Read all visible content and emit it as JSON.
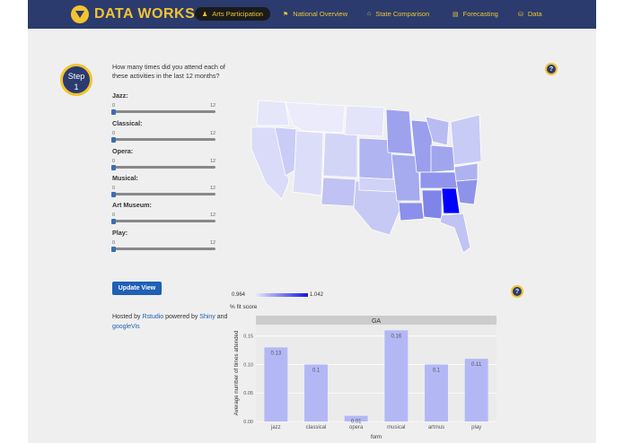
{
  "app": {
    "brand": "DATA WORKS",
    "nav": [
      {
        "label": "Arts Participation",
        "icon": "person-icon",
        "active": true
      },
      {
        "label": "National Overview",
        "icon": "flag-icon",
        "active": false
      },
      {
        "label": "State Comparison",
        "icon": "home-icon",
        "active": false
      },
      {
        "label": "Forecasting",
        "icon": "chart-icon",
        "active": false
      },
      {
        "label": "Data",
        "icon": "database-icon",
        "active": false
      }
    ]
  },
  "sidebar": {
    "step_label": "Step",
    "step_number": "1",
    "question": "How many times did you attend each of these activities in the last 12 months?",
    "sliders": [
      {
        "label": "Jazz:",
        "min": "0",
        "max": "12",
        "value": 0
      },
      {
        "label": "Classical:",
        "min": "0",
        "max": "12",
        "value": 0
      },
      {
        "label": "Opera:",
        "min": "0",
        "max": "12",
        "value": 0
      },
      {
        "label": "Musical:",
        "min": "0",
        "max": "12",
        "value": 0
      },
      {
        "label": "Art Museum:",
        "min": "0",
        "max": "12",
        "value": 0
      },
      {
        "label": "Play:",
        "min": "0",
        "max": "12",
        "value": 0
      }
    ],
    "update_button": "Update View",
    "hosted_prefix": "Hosted by ",
    "hosted_link1": "Rstudio",
    "hosted_mid": " powered by ",
    "hosted_link2": "Shiny",
    "hosted_and": " and ",
    "hosted_link3": "googleVis"
  },
  "help": {
    "label": "?"
  },
  "map": {
    "legend_min": "0.964",
    "legend_max": "1.042",
    "legend_title": "% fit score",
    "colors": {
      "low": "#f0f0ff",
      "high": "#1414e6",
      "selected": "#0000ff"
    }
  },
  "chart_data": {
    "type": "bar",
    "title": "GA",
    "xlabel": "form",
    "ylabel": "Average number of times attended",
    "categories": [
      "jazz",
      "classical",
      "opera",
      "musical",
      "artmus",
      "play"
    ],
    "values": [
      0.13,
      0.1,
      0.01,
      0.16,
      0.1,
      0.11
    ],
    "value_labels": [
      "0.13",
      "0.1",
      "0.01",
      "0.16",
      "0.1",
      "0.11"
    ],
    "yticks": [
      "0.00",
      "0.05",
      "0.10",
      "0.15"
    ],
    "ylim": [
      0,
      0.17
    ],
    "grid": true,
    "bar_color": "#b3b8f5"
  }
}
